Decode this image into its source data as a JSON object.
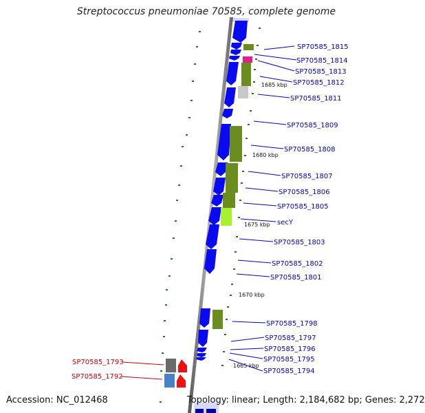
{
  "title": "Streptococcus pneumoniae 70585, complete genome",
  "accession_text": "Accession: NC_012468",
  "topology_text": "Topology: linear; Length: 2,184,682 bp; Genes: 2,272",
  "kbp_labels": [
    "1685 kbp",
    "1680 kbp",
    "1675 kbp",
    "1670 kbp",
    "1665 kbp"
  ],
  "right_labels": [
    "SP70585_1815",
    "SP70585_1814",
    "SP70585_1813",
    "SP70585_1812",
    "SP70585_1811",
    "SP70585_1809",
    "SP70585_1808",
    "SP70585_1807",
    "SP70585_1806",
    "SP70585_1805",
    "secY",
    "SP70585_1803",
    "SP70585_1802",
    "SP70585_1801",
    "SP70585_1798",
    "SP70585_1797",
    "SP70585_1796",
    "SP70585_1795",
    "SP70585_1794"
  ],
  "left_labels": [
    "SP70585_1793",
    "SP70585_1792"
  ],
  "colors": {
    "gene_blue": "#0a0af0",
    "gene_olive": "#6b8c1e",
    "gene_lime": "#a6f230",
    "gene_magenta": "#e0208e",
    "gene_gray": "#c8c8c8",
    "gene_dark_gray": "#6a6a6a",
    "gene_steel_blue": "#4682c8",
    "gene_red": "#ee1111",
    "label_blue": "#0000cc",
    "label_red": "#cc0000",
    "tick_green": "#1a7a1a",
    "axis_gray": "#888888"
  }
}
